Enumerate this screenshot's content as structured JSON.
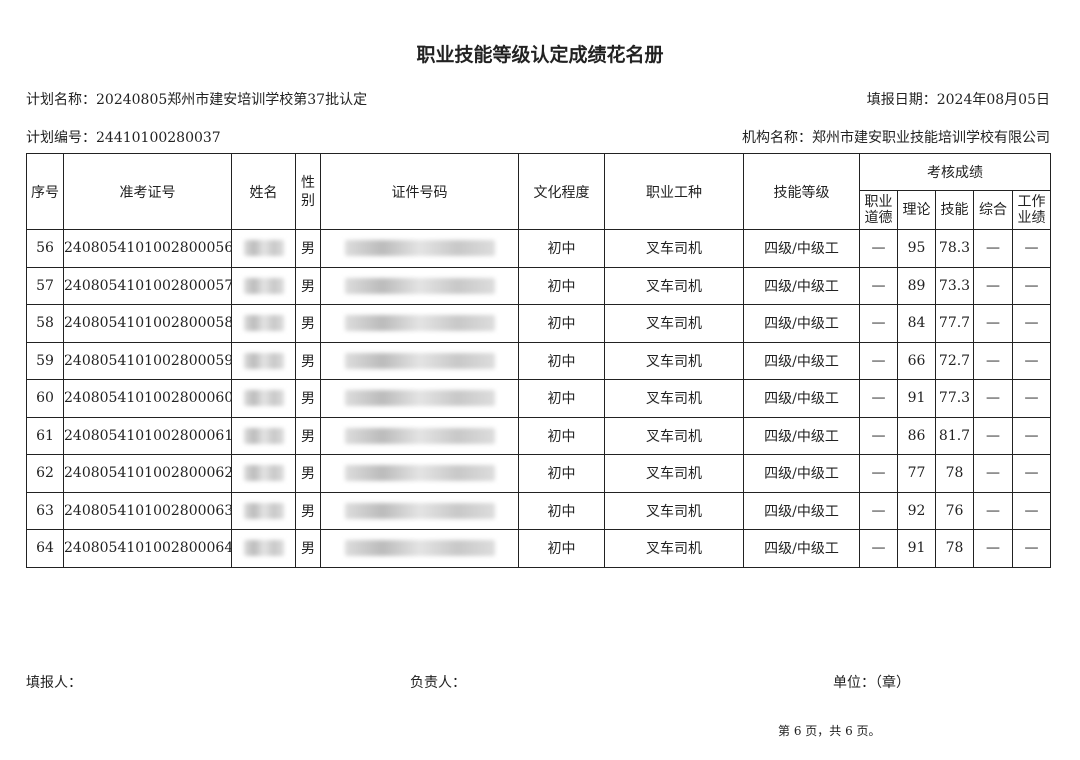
{
  "title": "职业技能等级认定成绩花名册",
  "plan_name": "计划名称：20240805郑州市建安培训学校第37批认定",
  "fill_date": "填报日期：2024年08月05日",
  "plan_number": "计划编号：24410100280037",
  "org_name": "机构名称：郑州市建安职业技能培训学校有限公司",
  "table": {
    "headers": {
      "seq": "序号",
      "exam_id": "准考证号",
      "name": "姓名",
      "gender": "性别",
      "id_number": "证件号码",
      "education": "文化程度",
      "occupation": "职业工种",
      "skill_level": "技能等级",
      "scores": "考核成绩",
      "ethics": "职业道德",
      "theory": "理论",
      "skill": "技能",
      "overall": "综合",
      "work": "工作业绩"
    },
    "rows": [
      {
        "seq": "56",
        "exam_id": "2408054101002800056",
        "gender": "男",
        "education": "初中",
        "occupation": "叉车司机",
        "level": "四级/中级工",
        "ethics": "—",
        "theory": "95",
        "skill": "78.3",
        "overall": "—",
        "work": "—"
      },
      {
        "seq": "57",
        "exam_id": "2408054101002800057",
        "gender": "男",
        "education": "初中",
        "occupation": "叉车司机",
        "level": "四级/中级工",
        "ethics": "—",
        "theory": "89",
        "skill": "73.3",
        "overall": "—",
        "work": "—"
      },
      {
        "seq": "58",
        "exam_id": "2408054101002800058",
        "gender": "男",
        "education": "初中",
        "occupation": "叉车司机",
        "level": "四级/中级工",
        "ethics": "—",
        "theory": "84",
        "skill": "77.7",
        "overall": "—",
        "work": "—"
      },
      {
        "seq": "59",
        "exam_id": "2408054101002800059",
        "gender": "男",
        "education": "初中",
        "occupation": "叉车司机",
        "level": "四级/中级工",
        "ethics": "—",
        "theory": "66",
        "skill": "72.7",
        "overall": "—",
        "work": "—"
      },
      {
        "seq": "60",
        "exam_id": "2408054101002800060",
        "gender": "男",
        "education": "初中",
        "occupation": "叉车司机",
        "level": "四级/中级工",
        "ethics": "—",
        "theory": "91",
        "skill": "77.3",
        "overall": "—",
        "work": "—"
      },
      {
        "seq": "61",
        "exam_id": "2408054101002800061",
        "gender": "男",
        "education": "初中",
        "occupation": "叉车司机",
        "level": "四级/中级工",
        "ethics": "—",
        "theory": "86",
        "skill": "81.7",
        "overall": "—",
        "work": "—"
      },
      {
        "seq": "62",
        "exam_id": "2408054101002800062",
        "gender": "男",
        "education": "初中",
        "occupation": "叉车司机",
        "level": "四级/中级工",
        "ethics": "—",
        "theory": "77",
        "skill": "78",
        "overall": "—",
        "work": "—"
      },
      {
        "seq": "63",
        "exam_id": "2408054101002800063",
        "gender": "男",
        "education": "初中",
        "occupation": "叉车司机",
        "level": "四级/中级工",
        "ethics": "—",
        "theory": "92",
        "skill": "76",
        "overall": "—",
        "work": "—"
      },
      {
        "seq": "64",
        "exam_id": "2408054101002800064",
        "gender": "男",
        "education": "初中",
        "occupation": "叉车司机",
        "level": "四级/中级工",
        "ethics": "—",
        "theory": "91",
        "skill": "78",
        "overall": "—",
        "work": "—"
      }
    ]
  },
  "footer": {
    "filler": "填报人：",
    "responsible": "负责人：",
    "unit": "单位：（章）",
    "page": "第 6 页，共 6 页。"
  }
}
